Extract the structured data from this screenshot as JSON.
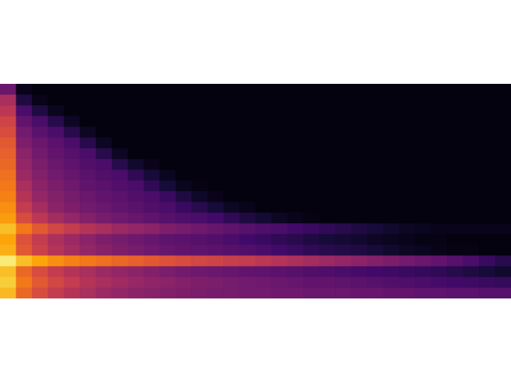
{
  "chart_data": {
    "type": "heatmap",
    "tick_labels": false,
    "zlim": [
      0,
      100
    ],
    "cells": [
      [
        30,
        4,
        2,
        2,
        2,
        2,
        2,
        2,
        2,
        2,
        2,
        2,
        2,
        2,
        2,
        2,
        2,
        2,
        2,
        2,
        2,
        2,
        2,
        2,
        2,
        2,
        2,
        2,
        2,
        2,
        2,
        2
      ],
      [
        45,
        12,
        4,
        2,
        2,
        2,
        2,
        2,
        2,
        2,
        2,
        2,
        2,
        2,
        2,
        2,
        2,
        2,
        2,
        2,
        2,
        2,
        2,
        2,
        2,
        2,
        2,
        2,
        2,
        2,
        2,
        2
      ],
      [
        50,
        22,
        12,
        5,
        2,
        2,
        2,
        2,
        2,
        2,
        2,
        2,
        2,
        2,
        2,
        2,
        2,
        2,
        2,
        2,
        2,
        2,
        2,
        2,
        2,
        2,
        2,
        2,
        2,
        2,
        2,
        2
      ],
      [
        55,
        28,
        22,
        14,
        6,
        2,
        2,
        2,
        2,
        2,
        2,
        2,
        2,
        2,
        2,
        2,
        2,
        2,
        2,
        2,
        2,
        2,
        2,
        2,
        2,
        2,
        2,
        2,
        2,
        2,
        2,
        2
      ],
      [
        58,
        32,
        26,
        22,
        14,
        6,
        2,
        2,
        2,
        2,
        2,
        2,
        2,
        2,
        2,
        2,
        2,
        2,
        2,
        2,
        2,
        2,
        2,
        2,
        2,
        2,
        2,
        2,
        2,
        2,
        2,
        2
      ],
      [
        62,
        35,
        30,
        26,
        22,
        14,
        6,
        2,
        2,
        2,
        2,
        2,
        2,
        2,
        2,
        2,
        2,
        2,
        2,
        2,
        2,
        2,
        2,
        2,
        2,
        2,
        2,
        2,
        2,
        2,
        2,
        2
      ],
      [
        64,
        38,
        32,
        28,
        25,
        22,
        14,
        6,
        2,
        2,
        2,
        2,
        2,
        2,
        2,
        2,
        2,
        2,
        2,
        2,
        2,
        2,
        2,
        2,
        2,
        2,
        2,
        2,
        2,
        2,
        2,
        2
      ],
      [
        66,
        40,
        34,
        30,
        27,
        24,
        22,
        14,
        8,
        4,
        2,
        2,
        2,
        2,
        2,
        2,
        2,
        2,
        2,
        2,
        2,
        2,
        2,
        2,
        2,
        2,
        2,
        2,
        2,
        2,
        2,
        2
      ],
      [
        68,
        42,
        36,
        32,
        29,
        26,
        24,
        22,
        16,
        10,
        5,
        2,
        2,
        2,
        2,
        2,
        2,
        2,
        2,
        2,
        2,
        2,
        2,
        2,
        2,
        2,
        2,
        2,
        2,
        2,
        2,
        2
      ],
      [
        70,
        45,
        38,
        34,
        31,
        28,
        26,
        24,
        22,
        16,
        10,
        5,
        3,
        2,
        2,
        2,
        2,
        2,
        2,
        2,
        2,
        2,
        2,
        2,
        2,
        2,
        2,
        2,
        2,
        2,
        2,
        2
      ],
      [
        72,
        48,
        40,
        36,
        33,
        30,
        28,
        26,
        24,
        22,
        18,
        12,
        7,
        4,
        2,
        2,
        2,
        2,
        2,
        2,
        2,
        2,
        2,
        2,
        2,
        2,
        2,
        2,
        2,
        2,
        2,
        2
      ],
      [
        75,
        52,
        44,
        38,
        35,
        32,
        30,
        28,
        26,
        24,
        22,
        18,
        14,
        10,
        6,
        4,
        2,
        2,
        2,
        2,
        2,
        2,
        2,
        2,
        2,
        2,
        2,
        2,
        2,
        2,
        2,
        2
      ],
      [
        78,
        58,
        50,
        44,
        40,
        36,
        33,
        31,
        29,
        27,
        25,
        23,
        22,
        20,
        16,
        12,
        9,
        6,
        4,
        3,
        2,
        2,
        2,
        2,
        2,
        2,
        2,
        2,
        2,
        2,
        2,
        2
      ],
      [
        85,
        70,
        62,
        56,
        52,
        48,
        45,
        42,
        40,
        38,
        35,
        33,
        31,
        29,
        27,
        25,
        23,
        22,
        20,
        18,
        16,
        14,
        12,
        10,
        8,
        6,
        5,
        4,
        4,
        4,
        4,
        4
      ],
      [
        80,
        60,
        52,
        46,
        42,
        38,
        35,
        33,
        31,
        29,
        27,
        26,
        25,
        24,
        22,
        20,
        18,
        16,
        14,
        12,
        10,
        9,
        8,
        6,
        5,
        4,
        3,
        3,
        2,
        2,
        2,
        2
      ],
      [
        82,
        62,
        54,
        48,
        44,
        40,
        37,
        35,
        33,
        31,
        29,
        28,
        27,
        26,
        25,
        24,
        22,
        20,
        18,
        16,
        14,
        13,
        12,
        10,
        8,
        6,
        5,
        4,
        3,
        3,
        2,
        2
      ],
      [
        95,
        85,
        80,
        75,
        72,
        70,
        68,
        66,
        64,
        62,
        60,
        58,
        56,
        55,
        53,
        52,
        50,
        48,
        46,
        44,
        42,
        40,
        38,
        36,
        34,
        32,
        30,
        28,
        25,
        22,
        18,
        14
      ],
      [
        85,
        66,
        58,
        52,
        48,
        45,
        42,
        40,
        38,
        36,
        34,
        32,
        31,
        30,
        29,
        28,
        27,
        26,
        25,
        24,
        23,
        22,
        21,
        20,
        19,
        18,
        17,
        16,
        14,
        12,
        10,
        8
      ],
      [
        88,
        70,
        62,
        56,
        52,
        48,
        45,
        43,
        41,
        39,
        38,
        36,
        35,
        34,
        33,
        32,
        31,
        30,
        29,
        28,
        28,
        27,
        26,
        25,
        24,
        23,
        22,
        21,
        20,
        19,
        18,
        17
      ],
      [
        84,
        66,
        58,
        52,
        48,
        45,
        42,
        40,
        38,
        37,
        36,
        35,
        34,
        33,
        33,
        32,
        32,
        31,
        31,
        30,
        30,
        30,
        29,
        29,
        28,
        28,
        27,
        27,
        26,
        26,
        25,
        25
      ]
    ]
  }
}
